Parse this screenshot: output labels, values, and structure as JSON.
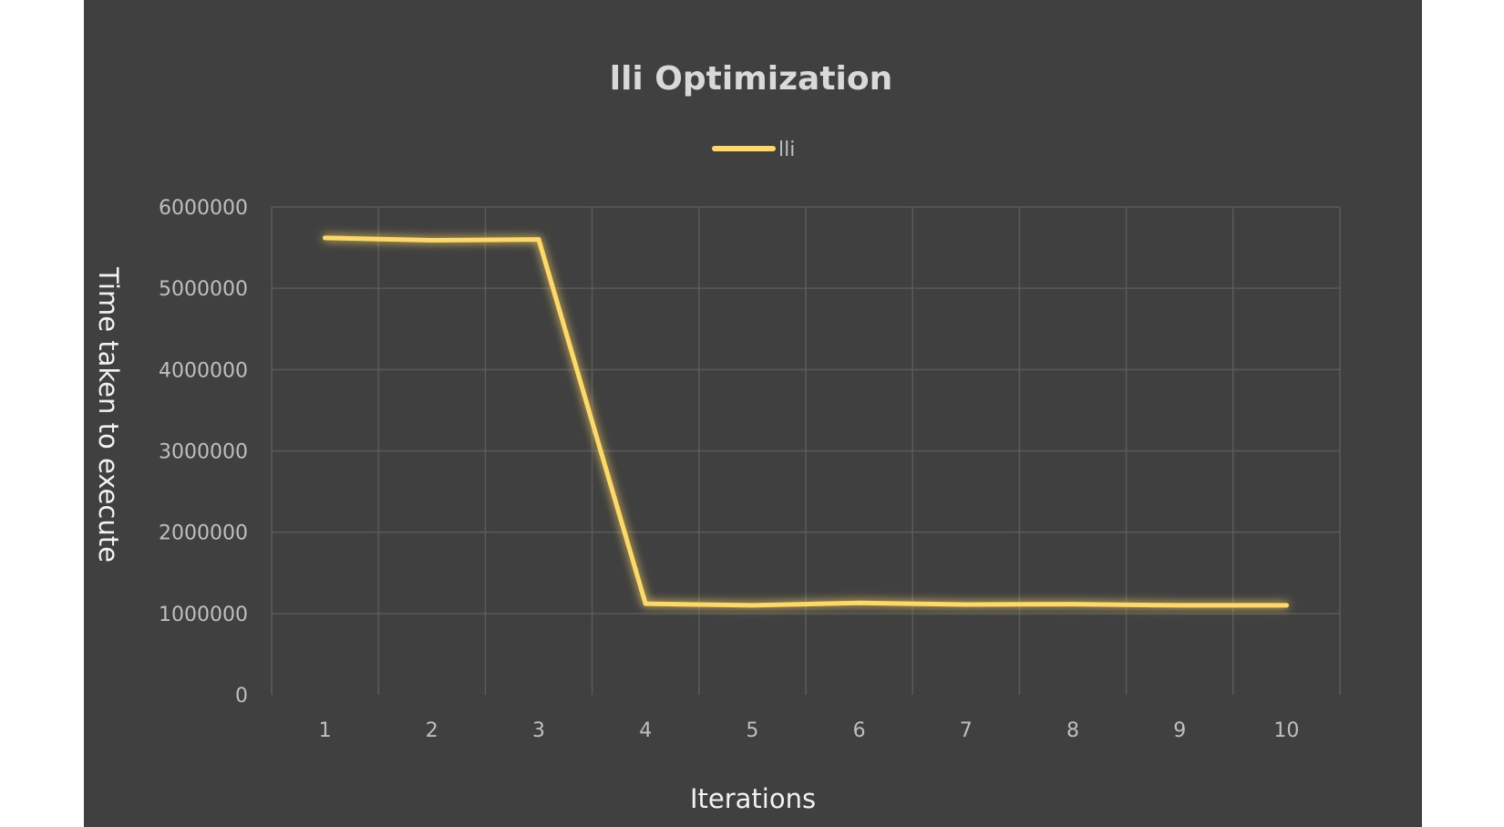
{
  "chart_data": {
    "type": "line",
    "title": "lli Optimization",
    "xlabel": "Iterations",
    "ylabel": "Time taken to execute",
    "categories": [
      "1",
      "2",
      "3",
      "4",
      "5",
      "6",
      "7",
      "8",
      "9",
      "10"
    ],
    "series": [
      {
        "name": "lli",
        "color": "#ffd966",
        "values": [
          5620000,
          5590000,
          5600000,
          1120000,
          1100000,
          1130000,
          1110000,
          1115000,
          1100000,
          1100000
        ]
      }
    ],
    "ylim": [
      0,
      6000000
    ],
    "yticks": [
      "0",
      "1000000",
      "2000000",
      "3000000",
      "4000000",
      "5000000",
      "6000000"
    ],
    "grid": true,
    "legend_position": "top",
    "background": "#404040"
  }
}
